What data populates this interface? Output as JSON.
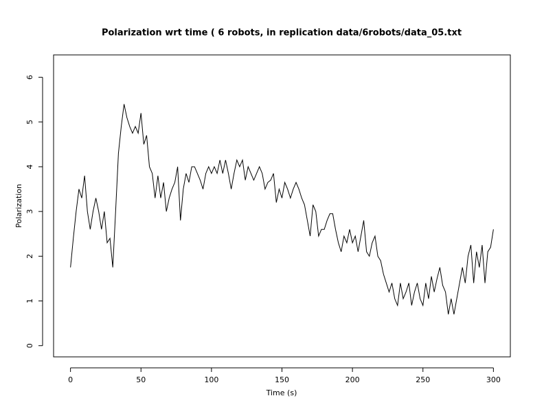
{
  "chart_data": {
    "type": "line",
    "title": "Polarization wrt time ( 6 robots, in replication  data/6robots/data_05.txt",
    "xlabel": "Time (s)",
    "ylabel": "Polarization",
    "xlim": [
      -12,
      312
    ],
    "ylim": [
      -0.25,
      6.5
    ],
    "xticks": [
      0,
      50,
      100,
      150,
      200,
      250,
      300
    ],
    "yticks": [
      0,
      1,
      2,
      3,
      4,
      5,
      6
    ],
    "series": [
      {
        "name": "Polarization",
        "color": "#000000",
        "x": [
          0,
          2,
          4,
          6,
          8,
          10,
          12,
          14,
          16,
          18,
          20,
          22,
          24,
          26,
          28,
          30,
          32,
          34,
          36,
          38,
          40,
          42,
          44,
          46,
          48,
          50,
          52,
          54,
          56,
          58,
          60,
          62,
          64,
          66,
          68,
          70,
          72,
          74,
          76,
          78,
          80,
          82,
          84,
          86,
          88,
          90,
          92,
          94,
          96,
          98,
          100,
          102,
          104,
          106,
          108,
          110,
          112,
          114,
          116,
          118,
          120,
          122,
          124,
          126,
          128,
          130,
          132,
          134,
          136,
          138,
          140,
          142,
          144,
          146,
          148,
          150,
          152,
          154,
          156,
          158,
          160,
          162,
          164,
          166,
          168,
          170,
          172,
          174,
          176,
          178,
          180,
          182,
          184,
          186,
          188,
          190,
          192,
          194,
          196,
          198,
          200,
          202,
          204,
          206,
          208,
          210,
          212,
          214,
          216,
          218,
          220,
          222,
          224,
          226,
          228,
          230,
          232,
          234,
          236,
          238,
          240,
          242,
          244,
          246,
          248,
          250,
          252,
          254,
          256,
          258,
          260,
          262,
          264,
          266,
          268,
          270,
          272,
          274,
          276,
          278,
          280,
          282,
          284,
          286,
          288,
          290,
          292,
          294,
          296,
          298,
          300
        ],
        "values": [
          1.75,
          2.4,
          3.0,
          3.5,
          3.3,
          3.8,
          3.0,
          2.6,
          3.0,
          3.3,
          3.0,
          2.6,
          3.0,
          2.3,
          2.4,
          1.75,
          3.0,
          4.3,
          4.9,
          5.4,
          5.1,
          4.9,
          4.75,
          4.9,
          4.75,
          5.2,
          4.5,
          4.7,
          4.0,
          3.85,
          3.3,
          3.8,
          3.3,
          3.65,
          3.0,
          3.3,
          3.5,
          3.65,
          4.0,
          2.8,
          3.5,
          3.85,
          3.65,
          4.0,
          4.0,
          3.85,
          3.7,
          3.5,
          3.85,
          4.0,
          3.85,
          4.0,
          3.85,
          4.15,
          3.85,
          4.15,
          3.85,
          3.5,
          3.85,
          4.15,
          4.0,
          4.15,
          3.7,
          4.0,
          3.85,
          3.7,
          3.85,
          4.0,
          3.85,
          3.5,
          3.65,
          3.7,
          3.85,
          3.2,
          3.5,
          3.3,
          3.65,
          3.5,
          3.3,
          3.5,
          3.65,
          3.5,
          3.3,
          3.15,
          2.8,
          2.45,
          3.15,
          3.0,
          2.45,
          2.6,
          2.6,
          2.8,
          2.95,
          2.95,
          2.6,
          2.3,
          2.1,
          2.45,
          2.3,
          2.6,
          2.3,
          2.45,
          2.1,
          2.45,
          2.8,
          2.1,
          2.0,
          2.3,
          2.45,
          2.0,
          1.9,
          1.6,
          1.4,
          1.2,
          1.4,
          1.05,
          0.9,
          1.4,
          1.05,
          1.2,
          1.4,
          0.9,
          1.2,
          1.4,
          1.05,
          0.9,
          1.4,
          1.05,
          1.55,
          1.2,
          1.5,
          1.75,
          1.35,
          1.2,
          0.7,
          1.05,
          0.7,
          1.05,
          1.4,
          1.75,
          1.4,
          2.0,
          2.25,
          1.4,
          2.1,
          1.75,
          2.25,
          1.4,
          2.1,
          2.2,
          2.6
        ]
      }
    ]
  }
}
